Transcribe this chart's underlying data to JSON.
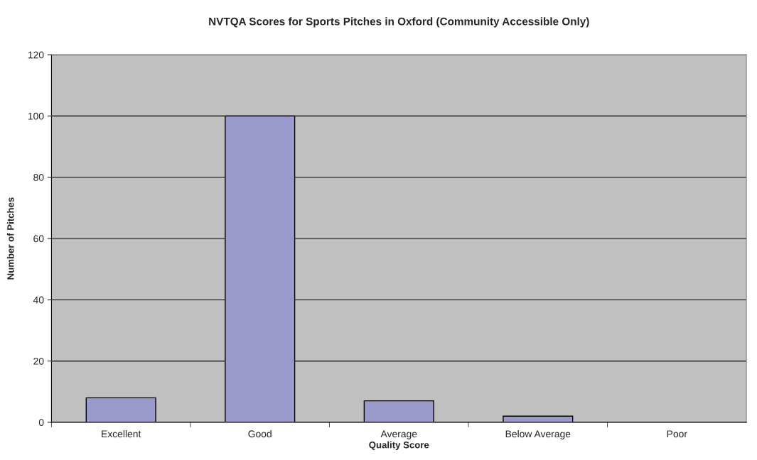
{
  "chart_data": {
    "type": "bar",
    "title": "NVTQA Scores for Sports Pitches in Oxford (Community Accessible Only)",
    "xlabel": "Quality Score",
    "ylabel": "Number of Pitches",
    "categories": [
      "Excellent",
      "Good",
      "Average",
      "Below Average",
      "Poor"
    ],
    "values": [
      8,
      100,
      7,
      2,
      0
    ],
    "color": "#9999cc",
    "ylim": [
      0,
      120
    ],
    "yticks": [
      0,
      20,
      40,
      60,
      80,
      100,
      120
    ],
    "grid": "y",
    "legend": false
  }
}
